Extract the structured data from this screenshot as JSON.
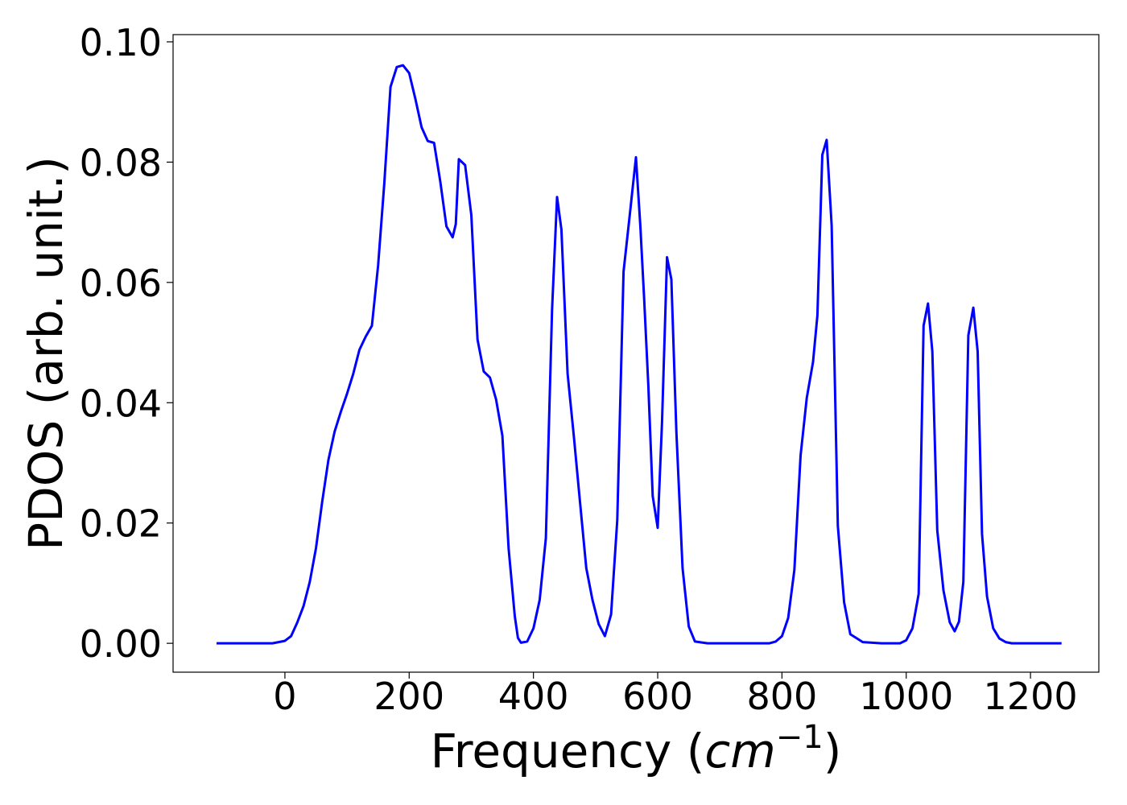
{
  "chart_data": {
    "type": "line",
    "title": "",
    "xlabel_text": "Frequency (",
    "xlabel_math": "cm",
    "xlabel_sup": "−1",
    "xlabel_close": ")",
    "ylabel": "PDOS (arb. unit.)",
    "xlim": [
      -180,
      1310
    ],
    "ylim": [
      -0.0048,
      0.1012
    ],
    "xticks": [
      0,
      200,
      400,
      600,
      800,
      1000,
      1200
    ],
    "xtick_labels": [
      "0",
      "200",
      "400",
      "600",
      "800",
      "1000",
      "1200"
    ],
    "yticks": [
      0.0,
      0.02,
      0.04,
      0.06,
      0.08,
      0.1
    ],
    "ytick_labels": [
      "0.00",
      "0.02",
      "0.04",
      "0.06",
      "0.08",
      "0.10"
    ],
    "grid": false,
    "legend": "none",
    "color": "#0000ff",
    "series": [
      {
        "x": [
          -110,
          -60,
          -20,
          0,
          10,
          20,
          30,
          40,
          50,
          60,
          70,
          80,
          90,
          100,
          110,
          120,
          130,
          140,
          150,
          160,
          170,
          180,
          190,
          200,
          210,
          220,
          230,
          240,
          250,
          260,
          270,
          275,
          280,
          290,
          300,
          310,
          320,
          330,
          340,
          350,
          360,
          370,
          375,
          380,
          390,
          400,
          410,
          420,
          430,
          438,
          445,
          455,
          465,
          475,
          485,
          495,
          505,
          515,
          525,
          535,
          545,
          555,
          565,
          572,
          578,
          585,
          592,
          600,
          607,
          615,
          622,
          630,
          640,
          650,
          660,
          680,
          720,
          760,
          780,
          790,
          800,
          810,
          820,
          830,
          840,
          850,
          857,
          865,
          872,
          880,
          890,
          900,
          910,
          930,
          960,
          980,
          990,
          1000,
          1010,
          1020,
          1028,
          1035,
          1042,
          1050,
          1060,
          1070,
          1078,
          1085,
          1092,
          1100,
          1108,
          1115,
          1122,
          1130,
          1140,
          1150,
          1160,
          1170,
          1190,
          1220,
          1250
        ],
        "y": [
          0.0,
          0.0,
          0.0,
          0.0004,
          0.0012,
          0.0035,
          0.0062,
          0.0102,
          0.0158,
          0.0235,
          0.0305,
          0.0352,
          0.0385,
          0.0415,
          0.0448,
          0.0488,
          0.051,
          0.0528,
          0.0628,
          0.0765,
          0.0925,
          0.0958,
          0.0961,
          0.0948,
          0.0905,
          0.0858,
          0.0835,
          0.0832,
          0.0768,
          0.0693,
          0.0675,
          0.0697,
          0.0805,
          0.0795,
          0.0712,
          0.0505,
          0.0452,
          0.0442,
          0.0405,
          0.0345,
          0.0158,
          0.0045,
          0.0009,
          0.0001,
          0.0003,
          0.0025,
          0.0072,
          0.0175,
          0.0555,
          0.0742,
          0.0688,
          0.0448,
          0.0345,
          0.0235,
          0.0125,
          0.0072,
          0.0032,
          0.0012,
          0.0048,
          0.0205,
          0.0618,
          0.0712,
          0.0808,
          0.0695,
          0.0578,
          0.0428,
          0.0245,
          0.0192,
          0.0368,
          0.0642,
          0.0605,
          0.0352,
          0.0125,
          0.0028,
          0.0003,
          0.0,
          0.0,
          0.0,
          0.0,
          0.0003,
          0.0012,
          0.0042,
          0.0122,
          0.0312,
          0.0408,
          0.0468,
          0.0545,
          0.0812,
          0.0837,
          0.0695,
          0.0195,
          0.0068,
          0.0015,
          0.0002,
          0.0,
          0.0,
          0.0,
          0.0005,
          0.0025,
          0.0082,
          0.0528,
          0.0565,
          0.0485,
          0.0188,
          0.0088,
          0.0035,
          0.002,
          0.0036,
          0.0102,
          0.0512,
          0.0558,
          0.0485,
          0.0182,
          0.0078,
          0.0025,
          0.0008,
          0.0002,
          0.0,
          0.0,
          0.0,
          0.0
        ]
      }
    ]
  }
}
